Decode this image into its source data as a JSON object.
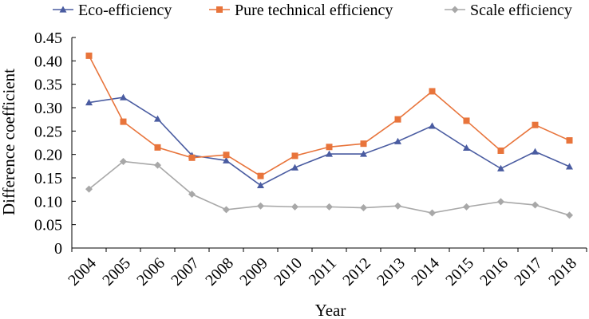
{
  "chart_data": {
    "type": "line",
    "title": "",
    "xlabel": "Year",
    "ylabel": "Difference coefficient",
    "ylim": [
      0,
      0.45
    ],
    "yticks": [
      "0",
      "0.05",
      "0.10",
      "0.15",
      "0.20",
      "0.25",
      "0.30",
      "0.35",
      "0.40",
      "0.45"
    ],
    "grid": false,
    "legend_position": "top",
    "x": [
      "2004",
      "2005",
      "2006",
      "2007",
      "2008",
      "2009",
      "2010",
      "2011",
      "2012",
      "2013",
      "2014",
      "2015",
      "2016",
      "2017",
      "2018"
    ],
    "series": [
      {
        "name": "Eco-efficiency",
        "color": "#4a5ca1",
        "marker": "triangle",
        "values": [
          0.311,
          0.322,
          0.276,
          0.198,
          0.187,
          0.134,
          0.172,
          0.201,
          0.201,
          0.228,
          0.261,
          0.214,
          0.17,
          0.206,
          0.174
        ]
      },
      {
        "name": "Pure technical efficiency",
        "color": "#e8743b",
        "marker": "square",
        "values": [
          0.411,
          0.27,
          0.215,
          0.193,
          0.199,
          0.154,
          0.197,
          0.216,
          0.223,
          0.275,
          0.335,
          0.272,
          0.208,
          0.263,
          0.23
        ]
      },
      {
        "name": "Scale efficiency",
        "color": "#a8a8a8",
        "marker": "diamond",
        "values": [
          0.126,
          0.185,
          0.177,
          0.115,
          0.082,
          0.09,
          0.088,
          0.088,
          0.086,
          0.09,
          0.075,
          0.088,
          0.099,
          0.092,
          0.07
        ]
      }
    ]
  }
}
